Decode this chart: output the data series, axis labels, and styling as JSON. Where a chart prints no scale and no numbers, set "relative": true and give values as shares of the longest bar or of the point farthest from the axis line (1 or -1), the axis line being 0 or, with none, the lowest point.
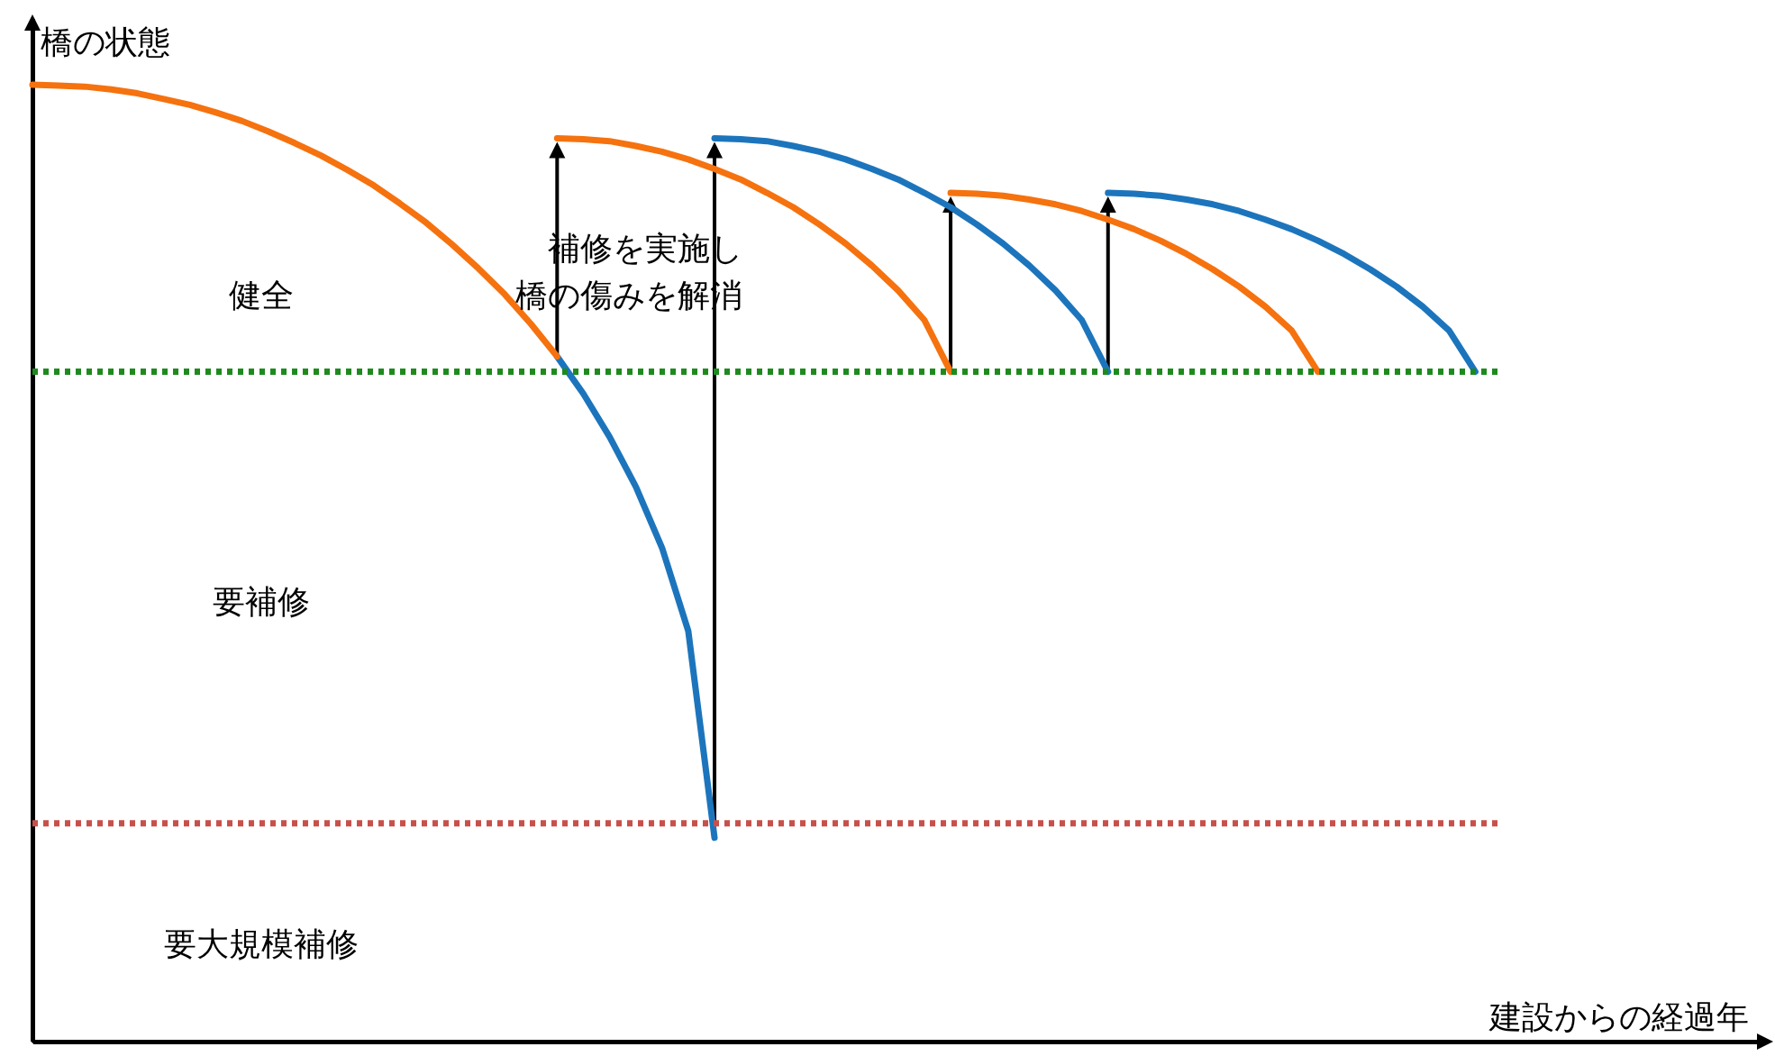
{
  "chart_data": {
    "type": "line",
    "relative": true,
    "xlabel": "建設からの経過年",
    "ylabel": "橋の状態",
    "line_style": "solid",
    "categories": [
      null,
      null,
      null,
      null,
      null,
      null,
      null,
      null,
      null,
      null,
      null,
      null,
      null,
      null,
      null,
      null,
      null,
      null,
      null,
      null,
      null,
      null,
      null,
      null,
      null,
      null,
      null,
      null,
      null,
      null,
      null,
      null,
      null,
      null,
      null,
      null,
      null,
      null,
      null,
      null,
      null,
      null,
      null,
      null,
      null,
      null,
      null,
      null,
      null,
      null,
      null,
      null,
      null,
      null,
      null,
      null,
      null
    ],
    "series": [
      {
        "color": "#1c75bc",
        "values": [
          null,
          null,
          null,
          null,
          null,
          null,
          null,
          null,
          null,
          null,
          null,
          null,
          null,
          null,
          null,
          null,
          null,
          null,
          null,
          null,
          0.716,
          0.677,
          0.632,
          0.58,
          0.516,
          0.429,
          0.213,
          null,
          null,
          null,
          null,
          null,
          null,
          null,
          null,
          null,
          null,
          null,
          null,
          null,
          null,
          null,
          null,
          null,
          null,
          null,
          null,
          null,
          null,
          null,
          null,
          null,
          null,
          null,
          null,
          null,
          null
        ]
      },
      {
        "color": "#f5720f",
        "values": [
          1.0,
          0.999,
          0.998,
          0.995,
          0.991,
          0.985,
          0.979,
          0.971,
          0.962,
          0.951,
          0.939,
          0.926,
          0.911,
          0.895,
          0.876,
          0.856,
          0.833,
          0.808,
          0.781,
          0.75,
          0.716,
          null,
          null,
          null,
          null,
          null,
          null,
          null,
          null,
          null,
          null,
          null,
          null,
          null,
          null,
          null,
          null,
          null,
          null,
          null,
          null,
          null,
          null,
          null,
          null,
          null,
          null,
          null,
          null,
          null,
          null,
          null,
          null,
          null,
          null,
          null,
          null
        ]
      },
      {
        "color": "#f5720f",
        "values": [
          null,
          null,
          null,
          null,
          null,
          null,
          null,
          null,
          null,
          null,
          null,
          null,
          null,
          null,
          null,
          null,
          null,
          null,
          null,
          null,
          0.944,
          0.943,
          0.941,
          0.936,
          0.93,
          0.922,
          0.912,
          0.901,
          0.887,
          0.872,
          0.854,
          0.834,
          0.811,
          0.785,
          0.754,
          0.7,
          null,
          null,
          null,
          null,
          null,
          null,
          null,
          null,
          null,
          null,
          null,
          null,
          null,
          null,
          null,
          null,
          null,
          null,
          null,
          null,
          null
        ]
      },
      {
        "color": "#1c75bc",
        "values": [
          null,
          null,
          null,
          null,
          null,
          null,
          null,
          null,
          null,
          null,
          null,
          null,
          null,
          null,
          null,
          null,
          null,
          null,
          null,
          null,
          null,
          null,
          null,
          null,
          null,
          null,
          0.944,
          0.943,
          0.941,
          0.936,
          0.93,
          0.922,
          0.912,
          0.901,
          0.887,
          0.872,
          0.854,
          0.834,
          0.811,
          0.785,
          0.754,
          0.7,
          null,
          null,
          null,
          null,
          null,
          null,
          null,
          null,
          null,
          null,
          null,
          null,
          null,
          null,
          null
        ]
      },
      {
        "color": "#f5720f",
        "values": [
          null,
          null,
          null,
          null,
          null,
          null,
          null,
          null,
          null,
          null,
          null,
          null,
          null,
          null,
          null,
          null,
          null,
          null,
          null,
          null,
          null,
          null,
          null,
          null,
          null,
          null,
          null,
          null,
          null,
          null,
          null,
          null,
          null,
          null,
          null,
          0.887,
          0.886,
          0.884,
          0.88,
          0.875,
          0.868,
          0.859,
          0.849,
          0.837,
          0.823,
          0.807,
          0.789,
          0.768,
          0.743,
          0.7,
          null,
          null,
          null,
          null,
          null,
          null,
          null
        ]
      },
      {
        "color": "#1c75bc",
        "values": [
          null,
          null,
          null,
          null,
          null,
          null,
          null,
          null,
          null,
          null,
          null,
          null,
          null,
          null,
          null,
          null,
          null,
          null,
          null,
          null,
          null,
          null,
          null,
          null,
          null,
          null,
          null,
          null,
          null,
          null,
          null,
          null,
          null,
          null,
          null,
          null,
          null,
          null,
          null,
          null,
          null,
          0.887,
          0.886,
          0.884,
          0.88,
          0.875,
          0.868,
          0.859,
          0.849,
          0.837,
          0.823,
          0.807,
          0.789,
          0.768,
          0.743,
          0.7,
          null
        ]
      }
    ],
    "ref_lines": [
      {
        "axis": "y",
        "value": 0.7,
        "color": "#1e8a1e",
        "line_style": "dotted"
      },
      {
        "axis": "y",
        "value": 0.228,
        "color": "#c8504b",
        "line_style": "dotted"
      }
    ],
    "annotations": [
      "健全",
      "要補修",
      "要大規模補修",
      "補修を実施し",
      "橋の傷みを解消"
    ]
  }
}
